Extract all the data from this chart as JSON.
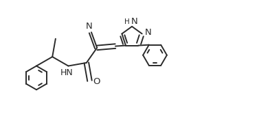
{
  "bg_color": "#ffffff",
  "line_color": "#2a2a2a",
  "line_width": 1.4,
  "figsize": [
    3.93,
    2.02
  ],
  "dpi": 100,
  "xlim": [
    0,
    3.93
  ],
  "ylim": [
    0,
    2.02
  ]
}
